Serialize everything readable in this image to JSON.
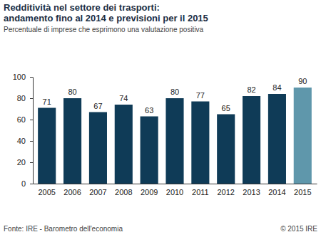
{
  "chart_data": {
    "type": "bar",
    "title": "Redditività nel settore dei trasporti:\nandamento fino al 2014 e previsioni per il 2015",
    "subtitle": "Percentuale di imprese che esprimono una valutazione positiva",
    "categories": [
      "2005",
      "2006",
      "2007",
      "2008",
      "2009",
      "2010",
      "2011",
      "2012",
      "2013",
      "2014",
      "2015"
    ],
    "values": [
      71,
      80,
      67,
      74,
      63,
      80,
      77,
      65,
      82,
      84,
      90
    ],
    "colors": [
      "#0f3b57",
      "#0f3b57",
      "#0f3b57",
      "#0f3b57",
      "#0f3b57",
      "#0f3b57",
      "#0f3b57",
      "#0f3b57",
      "#0f3b57",
      "#0f3b57",
      "#5f97ab"
    ],
    "ylim": [
      0,
      100
    ],
    "yticks": [
      0,
      20,
      40,
      60,
      80,
      100
    ],
    "grid": false,
    "data_labels": true,
    "source": "Fonte: IRE - Barometro dell'economia",
    "credit": "© 2015 IRE"
  }
}
